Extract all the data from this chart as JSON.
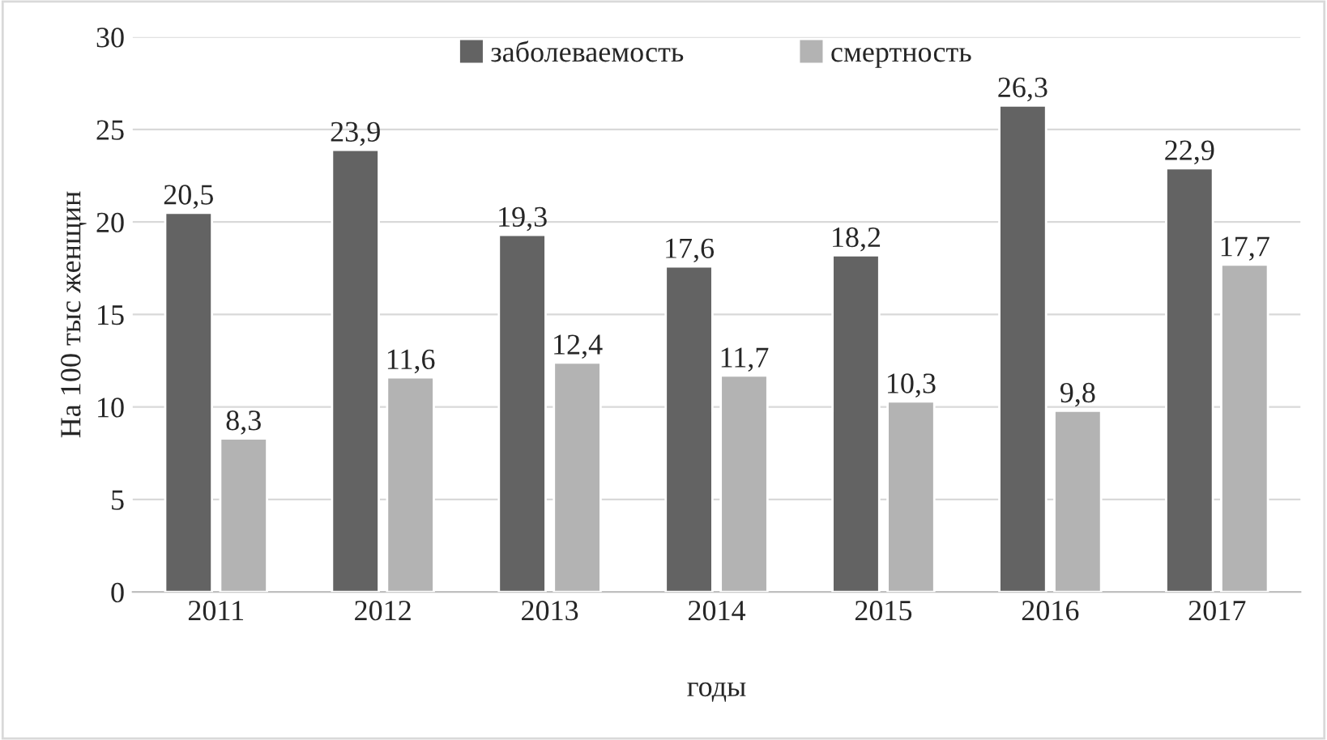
{
  "chart_data": {
    "type": "bar",
    "xlabel": "годы",
    "ylabel": "На 100 тыс женщин",
    "categories": [
      "2011",
      "2012",
      "2013",
      "2014",
      "2015",
      "2016",
      "2017"
    ],
    "series": [
      {
        "name": "заболеваемость",
        "color": "#636363",
        "values": [
          20.5,
          23.9,
          19.3,
          17.6,
          18.2,
          26.3,
          22.9
        ],
        "value_labels": [
          "20,5",
          "23,9",
          "19,3",
          "17,6",
          "18,2",
          "26,3",
          "22,9"
        ]
      },
      {
        "name": "смертность",
        "color": "#b3b3b3",
        "values": [
          8.3,
          11.6,
          12.4,
          11.7,
          10.3,
          9.8,
          17.7
        ],
        "value_labels": [
          "8,3",
          "11,6",
          "12,4",
          "11,7",
          "10,3",
          "9,8",
          "17,7"
        ]
      }
    ],
    "ylim": [
      0,
      30
    ],
    "yticks": [
      0,
      5,
      10,
      15,
      20,
      25,
      30
    ],
    "grid": "y",
    "legend": "top"
  }
}
